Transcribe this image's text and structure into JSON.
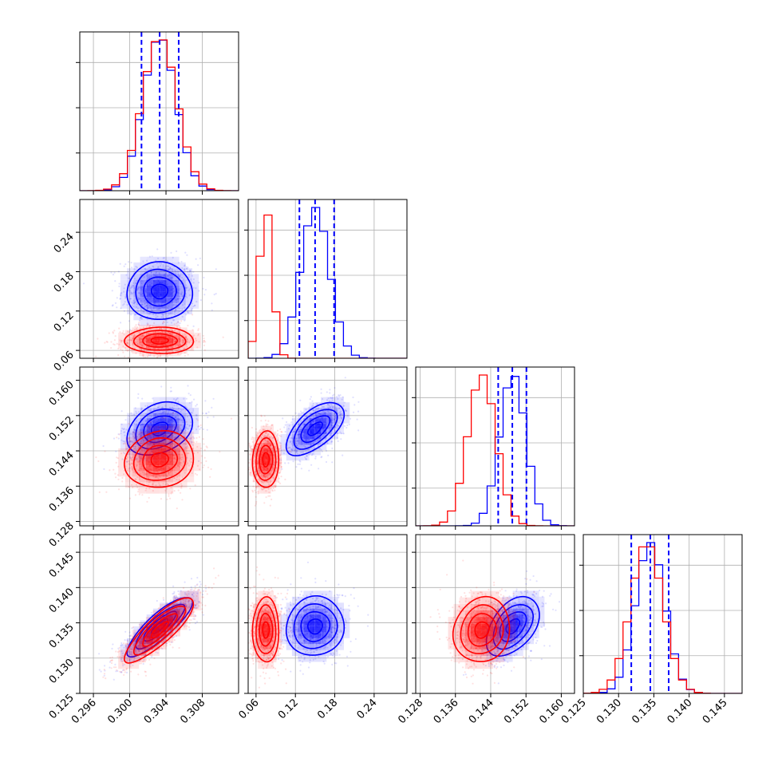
{
  "chart_data": {
    "type": "corner",
    "title": "",
    "parameters": [
      "",
      "",
      "",
      ""
    ],
    "series": [
      {
        "color": "#0000ff",
        "means": [
          0.3033,
          0.15,
          0.149,
          0.1345
        ],
        "sigmas": [
          0.0018,
          0.022,
          0.003,
          0.0021
        ],
        "correlations": [
          [
            0,
            1,
            0.0
          ],
          [
            0,
            2,
            0.3
          ],
          [
            0,
            3,
            0.85
          ],
          [
            1,
            2,
            0.6
          ],
          [
            1,
            3,
            0.05
          ],
          [
            2,
            3,
            0.45
          ]
        ]
      },
      {
        "color": "#ff0000",
        "means": [
          0.3033,
          0.075,
          0.142,
          0.134
        ],
        "sigmas": [
          0.0019,
          0.01,
          0.0032,
          0.0023
        ],
        "correlations": [
          [
            0,
            1,
            0.0
          ],
          [
            0,
            2,
            0.1
          ],
          [
            0,
            3,
            0.85
          ],
          [
            1,
            2,
            0.05
          ],
          [
            1,
            3,
            0.0
          ],
          [
            2,
            3,
            0.1
          ]
        ]
      }
    ],
    "quantile_lines": [
      {
        "parameter": 0,
        "values": [
          0.3013,
          0.3033,
          0.3054
        ]
      },
      {
        "parameter": 1,
        "values": [
          0.1261,
          0.15,
          0.179
        ]
      },
      {
        "parameter": 2,
        "values": [
          0.1457,
          0.1489,
          0.1521
        ]
      },
      {
        "parameter": 3,
        "values": [
          0.1318,
          0.1345,
          0.1371
        ]
      }
    ],
    "axes": [
      {
        "range": [
          0.2945,
          0.312
        ],
        "ticks": [
          0.296,
          0.3,
          0.304,
          0.308
        ],
        "tick_labels": [
          "0.296",
          "0.300",
          "0.304",
          "0.308"
        ]
      },
      {
        "range": [
          0.048,
          0.29
        ],
        "ticks": [
          0.06,
          0.12,
          0.18,
          0.24
        ],
        "tick_labels": [
          "0.06",
          "0.12",
          "0.18",
          "0.24"
        ]
      },
      {
        "range": [
          0.127,
          0.163
        ],
        "ticks": [
          0.128,
          0.136,
          0.144,
          0.152,
          0.16
        ],
        "tick_labels": [
          "0.128",
          "0.136",
          "0.144",
          "0.152",
          "0.160"
        ]
      },
      {
        "range": [
          0.125,
          0.1475
        ],
        "ticks": [
          0.125,
          0.13,
          0.135,
          0.14,
          0.145
        ],
        "tick_labels": [
          "0.125",
          "0.130",
          "0.135",
          "0.140",
          "0.145"
        ]
      }
    ],
    "grid": true,
    "legend": "none"
  }
}
